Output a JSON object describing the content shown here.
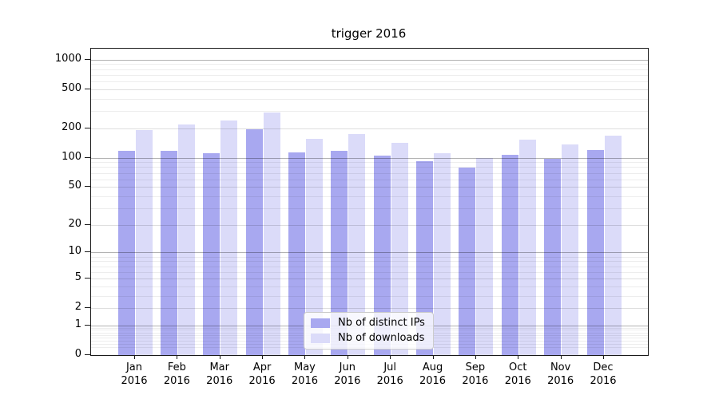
{
  "title": "trigger 2016",
  "legend": {
    "items": [
      {
        "label": "Nb of distinct IPs",
        "color": "#a8a8f0"
      },
      {
        "label": "Nb of downloads",
        "color": "#dbdbf9"
      }
    ]
  },
  "y_axis": {
    "tick_labels": [
      "1000",
      "500",
      "200",
      "100",
      "50",
      "20",
      "10",
      "5",
      "2",
      "1",
      "0"
    ],
    "tick_values": [
      1000,
      500,
      200,
      100,
      50,
      20,
      10,
      5,
      2,
      1,
      0
    ]
  },
  "x_axis": {
    "months": [
      "Jan",
      "Feb",
      "Mar",
      "Apr",
      "May",
      "Jun",
      "Jul",
      "Aug",
      "Sep",
      "Oct",
      "Nov",
      "Dec"
    ],
    "year": "2016"
  },
  "chart_data": {
    "type": "bar",
    "title": "trigger 2016",
    "categories": [
      "Jan 2016",
      "Feb 2016",
      "Mar 2016",
      "Apr 2016",
      "May 2016",
      "Jun 2016",
      "Jul 2016",
      "Aug 2016",
      "Sep 2016",
      "Oct 2016",
      "Nov 2016",
      "Dec 2016"
    ],
    "series": [
      {
        "name": "Nb of distinct IPs",
        "color": "#a8a8f0",
        "values": [
          118,
          117,
          112,
          195,
          113,
          118,
          105,
          92,
          79,
          108,
          98,
          120
        ]
      },
      {
        "name": "Nb of downloads",
        "color": "#dbdbf9",
        "values": [
          192,
          220,
          239,
          292,
          157,
          175,
          143,
          111,
          100,
          152,
          137,
          168
        ]
      }
    ],
    "xlabel": "",
    "ylabel": "",
    "yscale": "log1p",
    "ylim": [
      0,
      1300
    ],
    "y_ticks": [
      0,
      1,
      2,
      5,
      10,
      20,
      50,
      100,
      200,
      500,
      1000
    ],
    "grid": true,
    "legend_position": "lower center"
  },
  "grid": {
    "major_values": [
      1,
      10,
      100,
      1000
    ],
    "mid_values": [
      2,
      5,
      20,
      50,
      200,
      500
    ],
    "minor_values": [
      0.2,
      0.3,
      0.4,
      0.5,
      0.6,
      0.7,
      0.8,
      0.9,
      3,
      4,
      6,
      7,
      8,
      9,
      30,
      40,
      60,
      70,
      80,
      90,
      300,
      400,
      600,
      700,
      800,
      900
    ],
    "major_color": "rgba(0,0,0,0.30)",
    "mid_color": "rgba(0,0,0,0.13)",
    "minor_color": "rgba(0,0,0,0.07)"
  }
}
